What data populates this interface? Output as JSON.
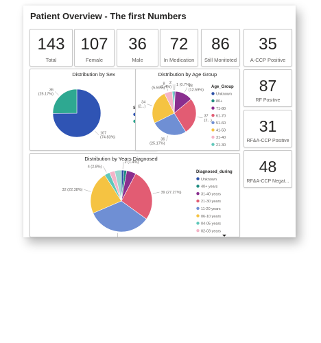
{
  "page": {
    "title": "Patient Overview - The first Numbers"
  },
  "kpis": [
    {
      "value": "143",
      "label": "Total"
    },
    {
      "value": "107",
      "label": "Female"
    },
    {
      "value": "36",
      "label": "Male"
    },
    {
      "value": "72",
      "label": "In Medication"
    },
    {
      "value": "86",
      "label": "Still Monitoted"
    },
    {
      "value": "35",
      "label": "A-CCP Positive"
    }
  ],
  "side_kpis": [
    {
      "value": "87",
      "label": "RF Positive"
    },
    {
      "value": "31",
      "label": "RF&A-CCP Positive"
    },
    {
      "value": "48",
      "label": "RF&A-CCP Negat..."
    }
  ],
  "chart_data": [
    {
      "type": "pie",
      "title": "Distribution by Sex",
      "legend_title": "Sex",
      "legend_position": "right",
      "slices": [
        {
          "name": "Female",
          "value": 107,
          "label": "107\n(74.83%)",
          "color": "#2f54b4"
        },
        {
          "name": "Male",
          "value": 36,
          "label": "36\n(25.17%)",
          "color": "#2ea891"
        }
      ]
    },
    {
      "type": "pie",
      "title": "Distribution by Age Group",
      "legend_title": "Age_Group",
      "legend_position": "right",
      "slices": [
        {
          "name": "Unknown",
          "value": 1,
          "label": "1 (0.7%)",
          "color": "#2a4fa6"
        },
        {
          "name": "80+",
          "value": 0,
          "label": "",
          "color": "#1e8c80"
        },
        {
          "name": "71-80",
          "value": 18,
          "label": "18\n(12.59%)",
          "color": "#8a2f8f"
        },
        {
          "name": "61-70",
          "value": 37,
          "label": "37\n(2...)",
          "color": "#e25c73"
        },
        {
          "name": "51-60",
          "value": 36,
          "label": "36\n(25.17%)",
          "color": "#6f8fd4"
        },
        {
          "name": "41-50",
          "value": 34,
          "label": "34\n(2...)",
          "color": "#f5c342"
        },
        {
          "name": "31-40",
          "value": 8,
          "label": "8\n(5.59%)",
          "color": "#f4b4c8"
        },
        {
          "name": "21-30",
          "value": 2,
          "label": "2\n(1.4%)",
          "color": "#5fc7b9"
        }
      ]
    },
    {
      "type": "pie",
      "title": "Distribution by Years Diagnosed",
      "legend_title": "Diagnosed_during",
      "legend_position": "right",
      "slices": [
        {
          "name": "Unknown",
          "value": 2,
          "label": "2 (1.4%)",
          "color": "#2a4fa6"
        },
        {
          "name": "40+ years",
          "value": 2,
          "label": "",
          "color": "#1e8c80"
        },
        {
          "name": "31-40 years",
          "value": 7,
          "label": "",
          "color": "#8a2f8f"
        },
        {
          "name": "21-30 years",
          "value": 39,
          "label": "39 (27.27%)",
          "color": "#e25c73"
        },
        {
          "name": "11-20 years",
          "value": 48,
          "label": "48 (33.57%)",
          "color": "#6f8fd4"
        },
        {
          "name": "06-10 years",
          "value": 32,
          "label": "32 (22.38%)",
          "color": "#f5c342"
        },
        {
          "name": "04-05 years",
          "value": 4,
          "label": "4 (2.8%)",
          "color": "#5fc7b9"
        },
        {
          "name": "02-03 years",
          "value": 4,
          "label": "",
          "color": "#f4b4c8"
        },
        {
          "name": "0-1 years",
          "value": 5,
          "label": "",
          "color": "#9bd8d0"
        }
      ]
    }
  ],
  "icons": {
    "legend_scroll": "triangle-down-icon"
  }
}
